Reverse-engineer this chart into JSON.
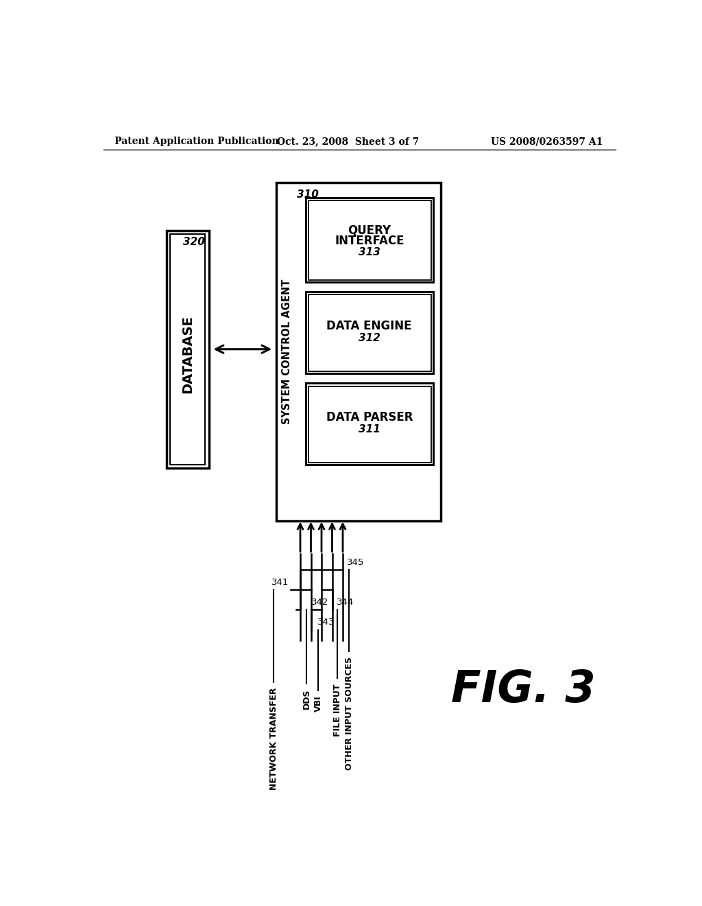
{
  "bg_color": "#ffffff",
  "header_left": "Patent Application Publication",
  "header_center": "Oct. 23, 2008  Sheet 3 of 7",
  "header_right": "US 2008/0263597 A1",
  "fig_label": "FIG. 3",
  "database_label": "DATABASE",
  "database_num": "320",
  "sca_label": "SYSTEM CONTROL AGENT",
  "sca_num": "310",
  "box311_label1": "DATA PARSER",
  "box311_label2": "311",
  "box312_label1": "DATA ENGINE",
  "box312_label2": "312",
  "box313_label1": "QUERY",
  "box313_label2": "INTERFACE",
  "box313_label3": "313",
  "sources": [
    {
      "num": "341",
      "label": "NETWORK TRANSFER"
    },
    {
      "num": "342",
      "label": "DDS"
    },
    {
      "num": "343",
      "label": "VBI"
    },
    {
      "num": "344",
      "label": "FILE INPUT"
    },
    {
      "num": "345",
      "label": "OTHER INPUT SOURCES"
    }
  ]
}
